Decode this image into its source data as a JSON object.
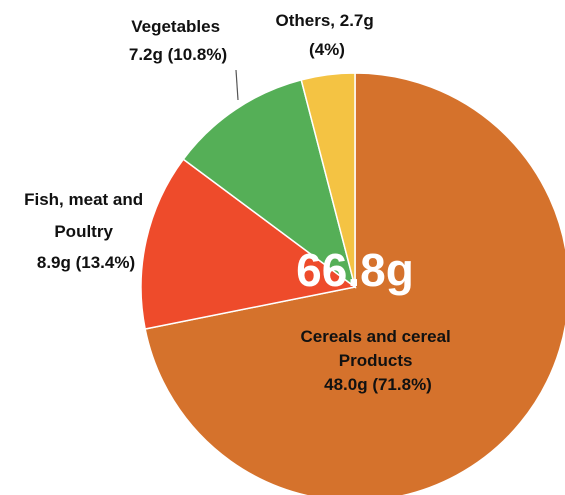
{
  "chart_data": {
    "type": "pie",
    "title": "",
    "total_label": "66.8g",
    "start_angle_deg": 0,
    "slices": [
      {
        "name": "Cereals and cereal Products",
        "value": 48.0,
        "percent": 71.8,
        "color": "#D5722C",
        "label_lines": [
          "Cereals and cereal",
          "Products",
          "48.0g (71.8%)"
        ]
      },
      {
        "name": "Fish, meat and Poultry",
        "value": 8.9,
        "percent": 13.4,
        "color": "#EE4B2B",
        "label_lines": [
          "Fish, meat and",
          "Poultry",
          "8.9g (13.4%)"
        ]
      },
      {
        "name": "Vegetables",
        "value": 7.2,
        "percent": 10.8,
        "color": "#55AF57",
        "label_lines": [
          "Vegetables",
          "7.2g (10.8%)"
        ]
      },
      {
        "name": "Others",
        "value": 2.7,
        "percent": 4,
        "color": "#F4C343",
        "label_lines": [
          "Others, 2.7g",
          "(4%)"
        ]
      }
    ]
  }
}
